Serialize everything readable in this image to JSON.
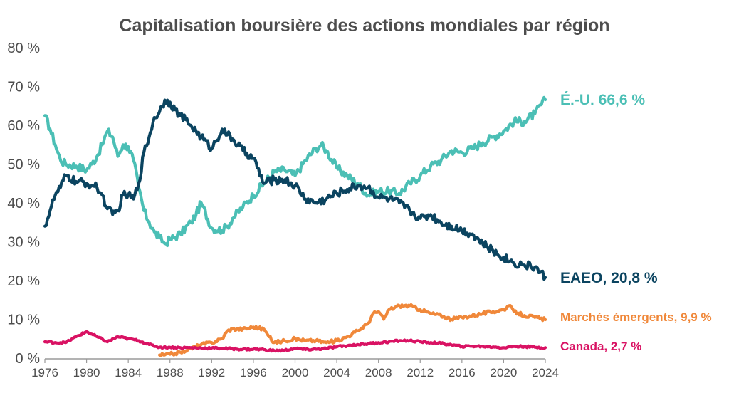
{
  "chart_data": {
    "type": "line",
    "title": "Capitalisation boursière des actions mondiales par région",
    "xlabel": "",
    "ylabel": "",
    "xlim": [
      1976,
      2024
    ],
    "ylim": [
      0,
      80
    ],
    "x_ticks": [
      "1976",
      "1980",
      "1984",
      "1988",
      "1992",
      "1996",
      "2000",
      "2004",
      "2008",
      "2012",
      "2016",
      "2020",
      "2024"
    ],
    "y_ticks": [
      "0 %",
      "10 %",
      "20 %",
      "30 %",
      "40 %",
      "50 %",
      "60 %",
      "70 %",
      "80 %"
    ],
    "grid": false,
    "legend": "end-of-line labels",
    "series": [
      {
        "label": "É.-U. 66,6 %",
        "color": "#4bbfb5",
        "x": [
          1976,
          1976.5,
          1977,
          1977.5,
          1978,
          1979,
          1980,
          1980.5,
          1981,
          1981.5,
          1982,
          1982.5,
          1983,
          1983.5,
          1984,
          1984.5,
          1985,
          1985.5,
          1986,
          1986.5,
          1987,
          1987.5,
          1988,
          1989,
          1990,
          1990.5,
          1991,
          1992,
          1993,
          1993.5,
          1994,
          1995,
          1996,
          1997,
          1998,
          1999,
          2000,
          2001,
          2002,
          2002.5,
          2003,
          2004,
          2005,
          2006,
          2007,
          2008,
          2009,
          2010,
          2011,
          2012,
          2013,
          2014,
          2015,
          2016,
          2017,
          2018,
          2019,
          2020,
          2021,
          2022,
          2023,
          2024
        ],
        "y": [
          62.5,
          59,
          55,
          51,
          50,
          49.5,
          48.5,
          50,
          52,
          55,
          58.5,
          57,
          52,
          55,
          54.5,
          51,
          44,
          38,
          35,
          32.5,
          31,
          29.5,
          30.5,
          32,
          35,
          37,
          40,
          33.5,
          33,
          34,
          36,
          39,
          42,
          45,
          48,
          48.5,
          47,
          51,
          54,
          55,
          53.5,
          49,
          47,
          45,
          42,
          43,
          43,
          42.5,
          45,
          47,
          49.5,
          51,
          53.5,
          53,
          54,
          55.5,
          57,
          58.5,
          61,
          61,
          63,
          66.6
        ]
      },
      {
        "label": "EAEO, 20,8 %",
        "color": "#0b4460",
        "x": [
          1976,
          1976.5,
          1977,
          1977.5,
          1978,
          1979,
          1980,
          1980.5,
          1981,
          1981.5,
          1982,
          1982.5,
          1983,
          1983.5,
          1984,
          1984.5,
          1985,
          1985.5,
          1986,
          1986.5,
          1987,
          1987.5,
          1988,
          1988.5,
          1989,
          1990,
          1990.5,
          1991,
          1992,
          1993,
          1993.5,
          1994,
          1995,
          1996,
          1997,
          1998,
          1999,
          2000,
          2001,
          2002,
          2003,
          2004,
          2005,
          2006,
          2007,
          2008,
          2009,
          2010,
          2011,
          2012,
          2013,
          2014,
          2015,
          2016,
          2017,
          2018,
          2019,
          2020,
          2021,
          2022,
          2023,
          2024
        ],
        "y": [
          34,
          38,
          42,
          44,
          47,
          45.5,
          45,
          44.5,
          44,
          42,
          38.5,
          37,
          38,
          42,
          42,
          41,
          45,
          53,
          57,
          62,
          63.5,
          66.5,
          66,
          64,
          62.5,
          60,
          58.5,
          57,
          54,
          59,
          57.5,
          56.5,
          53.5,
          51.5,
          45,
          46,
          46,
          44.5,
          41,
          40,
          41,
          42.5,
          43.5,
          44.5,
          44,
          41.5,
          41,
          40,
          38,
          36,
          37,
          35,
          34,
          33,
          32,
          29.5,
          27.5,
          26,
          24.5,
          24,
          23.5,
          20.8
        ]
      },
      {
        "label": "Marchés émergents, 9,9 %",
        "color": "#f0883a",
        "x": [
          1987,
          1987.5,
          1988,
          1989,
          1990,
          1991,
          1992,
          1993,
          1993.5,
          1994,
          1995,
          1996,
          1997,
          1997.5,
          1998,
          1999,
          2000,
          2001,
          2002,
          2003,
          2004,
          2005,
          2006,
          2007,
          2007.5,
          2008,
          2008.5,
          2009,
          2010,
          2011,
          2012,
          2013,
          2014,
          2015,
          2016,
          2017,
          2018,
          2019,
          2020,
          2020.5,
          2021,
          2022,
          2023,
          2024
        ],
        "y": [
          0.8,
          0.8,
          1,
          1.5,
          2.5,
          3.5,
          4,
          5,
          7,
          7.5,
          7.5,
          8,
          7.5,
          5.5,
          4,
          4.5,
          5,
          4.5,
          4.5,
          4,
          4.5,
          5.5,
          7,
          9,
          11.5,
          12,
          10,
          12.5,
          13.5,
          13.5,
          12.5,
          11.5,
          11,
          10,
          10.5,
          11,
          11.5,
          12,
          12.5,
          13.5,
          12,
          11,
          10.5,
          9.9
        ]
      },
      {
        "label": "Canada, 2,7 %",
        "color": "#d91263",
        "x": [
          1976,
          1977,
          1978,
          1979,
          1980,
          1981,
          1982,
          1983,
          1984,
          1985,
          1986,
          1987,
          1988,
          1989,
          1990,
          1991,
          1992,
          1993,
          1994,
          1995,
          1996,
          1997,
          1998,
          1999,
          2000,
          2001,
          2002,
          2003,
          2004,
          2005,
          2006,
          2007,
          2008,
          2009,
          2010,
          2011,
          2012,
          2013,
          2014,
          2015,
          2016,
          2017,
          2018,
          2019,
          2020,
          2021,
          2022,
          2023,
          2024
        ],
        "y": [
          4.2,
          4,
          4,
          5.5,
          6.8,
          5.5,
          4.2,
          5.5,
          5,
          4.5,
          3.5,
          2.8,
          2.8,
          2.7,
          2.7,
          2.6,
          2.6,
          2.5,
          2.4,
          2.3,
          2.3,
          2.2,
          1.9,
          2,
          2.5,
          2.2,
          2.3,
          2.5,
          2.9,
          3.2,
          3.5,
          3.7,
          4,
          4.2,
          4.5,
          4.5,
          4.2,
          4,
          3.8,
          3.4,
          3,
          3.1,
          3,
          2.9,
          2.7,
          3,
          3,
          2.8,
          2.7
        ]
      }
    ]
  }
}
